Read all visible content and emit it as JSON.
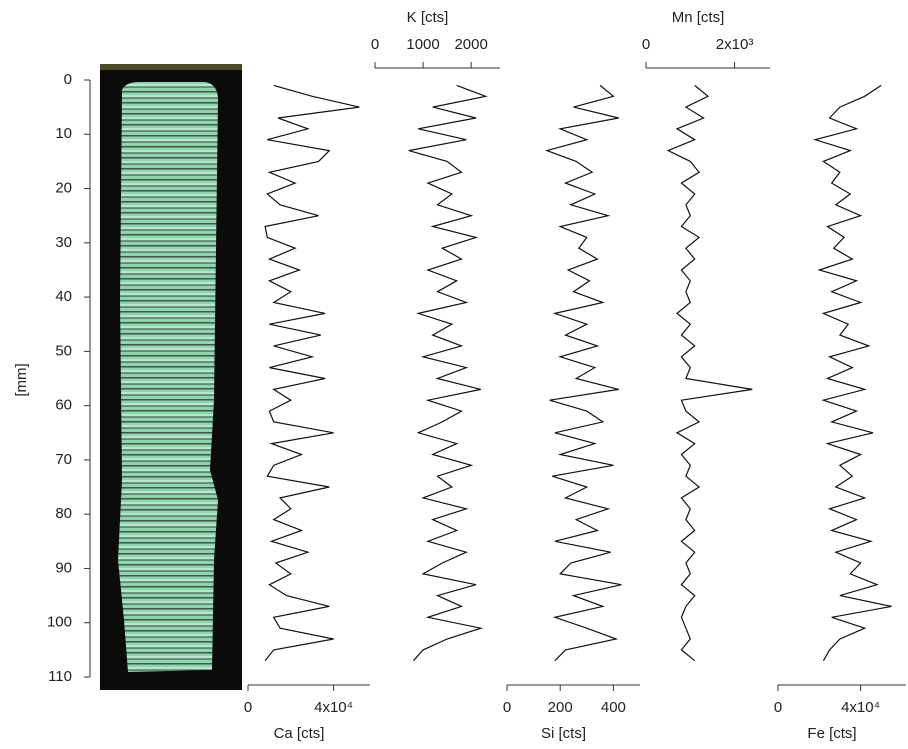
{
  "chart_data": [
    {
      "type": "line",
      "xlabel": "Ca [cts]",
      "xaxis": "bottom",
      "color": "#111111",
      "xlim": [
        0,
        57000
      ],
      "xticks": [
        0,
        {
          "value": 40000,
          "label": "4x10⁴"
        }
      ],
      "ylim": [
        0,
        110
      ],
      "yticks": [
        0,
        10,
        20,
        30,
        40,
        50,
        60,
        70,
        80,
        90,
        100,
        110
      ],
      "ylabel": "[mm]",
      "depth": [
        1,
        3,
        5,
        7,
        9,
        11,
        13,
        15,
        17,
        19,
        21,
        23,
        25,
        27,
        29,
        31,
        33,
        35,
        37,
        39,
        41,
        43,
        45,
        47,
        49,
        51,
        53,
        55,
        57,
        59,
        61,
        63,
        65,
        67,
        69,
        71,
        73,
        75,
        77,
        79,
        81,
        83,
        85,
        87,
        89,
        91,
        93,
        95,
        97,
        99,
        101,
        103,
        105,
        107
      ],
      "values": [
        12000,
        30000,
        52000,
        14000,
        28000,
        9000,
        38000,
        33000,
        10000,
        22000,
        9000,
        15000,
        33000,
        8000,
        9000,
        22000,
        10000,
        24000,
        10000,
        20000,
        12000,
        36000,
        10000,
        34000,
        12000,
        30000,
        10000,
        36000,
        12000,
        20000,
        10000,
        12000,
        40000,
        11000,
        25000,
        12000,
        9000,
        38000,
        15000,
        20000,
        12000,
        25000,
        11000,
        28000,
        13000,
        20000,
        10000,
        18000,
        38000,
        12000,
        15000,
        40000,
        12000,
        8000
      ]
    },
    {
      "type": "line",
      "xlabel": "K [cts]",
      "xaxis": "top",
      "color": "#111111",
      "xlim": [
        0,
        2600
      ],
      "xticks": [
        0,
        1000,
        2000
      ],
      "ylim": [
        0,
        110
      ],
      "depth": [
        1,
        3,
        5,
        7,
        9,
        11,
        13,
        15,
        17,
        19,
        21,
        23,
        25,
        27,
        29,
        31,
        33,
        35,
        37,
        39,
        41,
        43,
        45,
        47,
        49,
        51,
        53,
        55,
        57,
        59,
        61,
        63,
        65,
        67,
        69,
        71,
        73,
        75,
        77,
        79,
        81,
        83,
        85,
        87,
        89,
        91,
        93,
        95,
        97,
        99,
        101,
        103,
        105,
        107
      ],
      "values": [
        1700,
        2300,
        1200,
        2100,
        900,
        1900,
        700,
        1500,
        1800,
        1100,
        1600,
        1300,
        2000,
        1200,
        2100,
        1400,
        1800,
        1100,
        1700,
        1300,
        1900,
        900,
        1600,
        1200,
        1800,
        1000,
        1900,
        1300,
        2200,
        1100,
        1800,
        1400,
        900,
        1700,
        1200,
        2000,
        1300,
        1600,
        1000,
        1900,
        1200,
        1700,
        1100,
        1900,
        1400,
        1000,
        2100,
        1300,
        1800,
        1100,
        2200,
        1500,
        1000,
        800
      ]
    },
    {
      "type": "line",
      "xlabel": "Si [cts]",
      "xaxis": "bottom",
      "color": "#111111",
      "xlim": [
        0,
        500
      ],
      "xticks": [
        0,
        200,
        400
      ],
      "ylim": [
        0,
        110
      ],
      "depth": [
        1,
        3,
        5,
        7,
        9,
        11,
        13,
        15,
        17,
        19,
        21,
        23,
        25,
        27,
        29,
        31,
        33,
        35,
        37,
        39,
        41,
        43,
        45,
        47,
        49,
        51,
        53,
        55,
        57,
        59,
        61,
        63,
        65,
        67,
        69,
        71,
        73,
        75,
        77,
        79,
        81,
        83,
        85,
        87,
        89,
        91,
        93,
        95,
        97,
        99,
        101,
        103,
        105,
        107
      ],
      "values": [
        350,
        400,
        250,
        420,
        200,
        300,
        150,
        260,
        320,
        220,
        330,
        240,
        380,
        200,
        300,
        270,
        340,
        230,
        310,
        250,
        360,
        180,
        300,
        220,
        340,
        200,
        330,
        260,
        420,
        160,
        300,
        360,
        180,
        330,
        200,
        400,
        170,
        300,
        220,
        380,
        260,
        340,
        180,
        390,
        240,
        200,
        430,
        250,
        360,
        180,
        300,
        410,
        220,
        180
      ]
    },
    {
      "type": "line",
      "xlabel": "Mn [cts]",
      "xaxis": "top",
      "color": "#111111",
      "xlim": [
        0,
        2800
      ],
      "xticks": [
        0,
        {
          "value": 2000,
          "label": "2x10³"
        }
      ],
      "ylim": [
        0,
        110
      ],
      "depth": [
        1,
        3,
        5,
        7,
        9,
        11,
        13,
        15,
        17,
        19,
        21,
        23,
        25,
        27,
        29,
        31,
        33,
        35,
        37,
        39,
        41,
        43,
        45,
        47,
        49,
        51,
        53,
        55,
        57,
        59,
        61,
        63,
        65,
        67,
        69,
        71,
        73,
        75,
        77,
        79,
        81,
        83,
        85,
        87,
        89,
        91,
        93,
        95,
        97,
        99,
        101,
        103,
        105,
        107
      ],
      "values": [
        1100,
        1400,
        900,
        1300,
        700,
        1100,
        500,
        1000,
        1200,
        800,
        1100,
        900,
        1000,
        800,
        1200,
        900,
        1100,
        800,
        1000,
        900,
        1000,
        700,
        1000,
        800,
        1100,
        800,
        1000,
        900,
        2400,
        800,
        900,
        1200,
        700,
        1100,
        800,
        1000,
        900,
        1200,
        800,
        1000,
        900,
        1100,
        800,
        1100,
        900,
        1000,
        800,
        1100,
        900,
        800,
        900,
        1000,
        800,
        1100
      ]
    },
    {
      "type": "line",
      "xlabel": "Fe [cts]",
      "xaxis": "bottom",
      "color": "#111111",
      "xlim": [
        0,
        62000
      ],
      "xticks": [
        0,
        {
          "value": 40000,
          "label": "4x10⁴"
        }
      ],
      "ylim": [
        0,
        110
      ],
      "depth": [
        1,
        3,
        5,
        7,
        9,
        11,
        13,
        15,
        17,
        19,
        21,
        23,
        25,
        27,
        29,
        31,
        33,
        35,
        37,
        39,
        41,
        43,
        45,
        47,
        49,
        51,
        53,
        55,
        57,
        59,
        61,
        63,
        65,
        67,
        69,
        71,
        73,
        75,
        77,
        79,
        81,
        83,
        85,
        87,
        89,
        91,
        93,
        95,
        97,
        99,
        101,
        103,
        105,
        107
      ],
      "values": [
        50000,
        42000,
        30000,
        25000,
        38000,
        18000,
        35000,
        22000,
        30000,
        26000,
        35000,
        28000,
        40000,
        24000,
        32000,
        27000,
        36000,
        20000,
        38000,
        26000,
        40000,
        22000,
        34000,
        30000,
        44000,
        25000,
        36000,
        24000,
        42000,
        22000,
        38000,
        26000,
        46000,
        24000,
        40000,
        30000,
        36000,
        28000,
        42000,
        25000,
        38000,
        26000,
        45000,
        28000,
        40000,
        35000,
        48000,
        30000,
        55000,
        26000,
        42000,
        30000,
        25000,
        22000
      ]
    }
  ]
}
